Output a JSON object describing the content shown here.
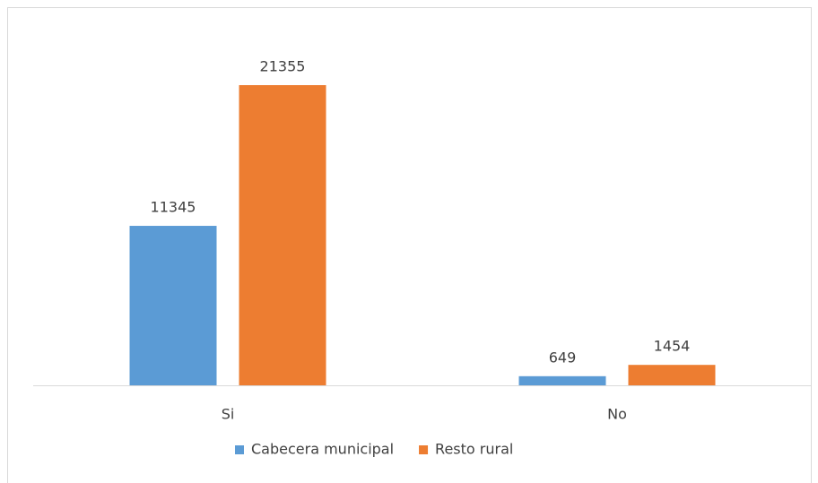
{
  "chart_data": {
    "type": "bar",
    "categories": [
      "Si",
      "No"
    ],
    "series": [
      {
        "name": "Cabecera municipal",
        "color": "#5b9bd5",
        "values": [
          11345,
          649
        ]
      },
      {
        "name": "Resto rural",
        "color": "#ed7d31",
        "values": [
          21355,
          1454
        ]
      }
    ],
    "legend": "bottom"
  }
}
